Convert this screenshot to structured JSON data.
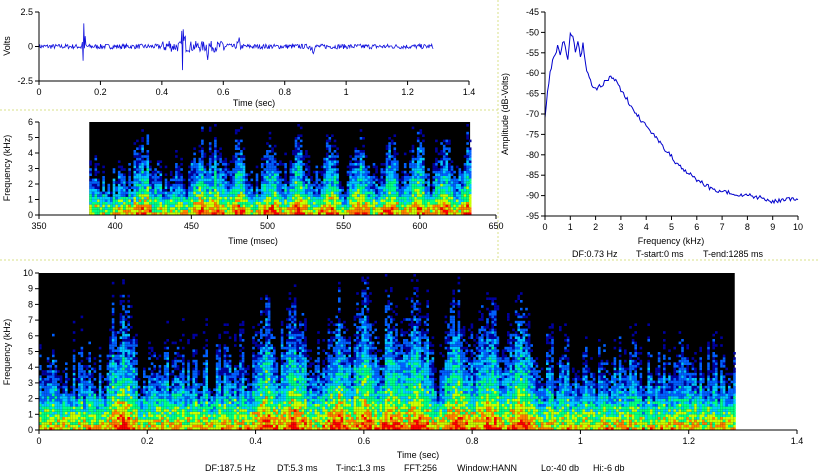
{
  "chart_data": [
    {
      "id": "waveform",
      "type": "line",
      "xlabel": "Time (sec)",
      "ylabel": "Volts",
      "xlim": [
        0,
        1.4
      ],
      "ylim": [
        -2.5,
        2.5
      ],
      "xticks": [
        "0",
        "0.2",
        "0.4",
        "0.6",
        "0.8",
        "1",
        "1.2",
        "1.4"
      ],
      "yticks": [
        "2.5",
        "0",
        "-2.5"
      ],
      "color": "#1010dd"
    },
    {
      "id": "spectrogram-detail",
      "type": "heatmap",
      "xlabel": "Time (msec)",
      "ylabel": "Frequency (kHz)",
      "xlim": [
        350,
        650
      ],
      "ylim": [
        0,
        6
      ],
      "data_x_range": [
        383,
        633
      ],
      "xticks": [
        "350",
        "400",
        "450",
        "500",
        "550",
        "600",
        "650"
      ],
      "yticks": [
        "0",
        "1",
        "2",
        "3",
        "4",
        "5",
        "6"
      ],
      "colormap": [
        "#000000",
        "#0000a0",
        "#0060ff",
        "#00c8ff",
        "#00ff80",
        "#c8ff00",
        "#ff8000",
        "#ff0000"
      ],
      "energy_peaks_ms": [
        418,
        455,
        465,
        480,
        502,
        520,
        540,
        560,
        580,
        598,
        615,
        632
      ]
    },
    {
      "id": "power-spectrum",
      "type": "line",
      "xlabel": "Frequency (kHz)",
      "ylabel": "Amplitude (dB-Volts)",
      "xlim": [
        0,
        10
      ],
      "ylim": [
        -95,
        -45
      ],
      "xticks": [
        "0",
        "1",
        "2",
        "3",
        "4",
        "5",
        "6",
        "7",
        "8",
        "9",
        "10"
      ],
      "yticks": [
        "-45",
        "-50",
        "-55",
        "-60",
        "-65",
        "-70",
        "-75",
        "-80",
        "-85",
        "-90",
        "-95"
      ],
      "series": [
        {
          "x": [
            0,
            0.1,
            0.2,
            0.3,
            0.4,
            0.5,
            0.6,
            0.7,
            0.8,
            0.9,
            1.0,
            1.1,
            1.2,
            1.3,
            1.4,
            1.5,
            1.6,
            1.8,
            2.0,
            2.2,
            2.4,
            2.6,
            2.8,
            3.0,
            3.3,
            3.6,
            4.0,
            4.4,
            4.8,
            5.2,
            5.6,
            6.0,
            6.5,
            7.0,
            7.5,
            8.0,
            8.5,
            9.0,
            9.5,
            10.0
          ],
          "y": [
            -71,
            -65,
            -60,
            -57,
            -56,
            -53,
            -56,
            -52,
            -53,
            -57,
            -50,
            -51,
            -55,
            -52,
            -56,
            -53,
            -58,
            -62,
            -64,
            -63,
            -62,
            -61,
            -62,
            -64,
            -67,
            -70,
            -73,
            -76,
            -79,
            -82,
            -84,
            -86,
            -88,
            -89,
            -89.5,
            -90,
            -90.5,
            -91.5,
            -91,
            -91
          ]
        }
      ],
      "color": "#0000cc"
    },
    {
      "id": "spectrogram-full",
      "type": "heatmap",
      "xlabel": "Time (sec)",
      "ylabel": "Frequency (kHz)",
      "xlim": [
        0,
        1.4
      ],
      "ylim": [
        0,
        10
      ],
      "data_x_range": [
        0,
        1.285
      ],
      "xticks": [
        "0",
        "0.2",
        "0.4",
        "0.6",
        "0.8",
        "1",
        "1.2",
        "1.4"
      ],
      "yticks": [
        "0",
        "1",
        "2",
        "3",
        "4",
        "5",
        "6",
        "7",
        "8",
        "9",
        "10"
      ],
      "colormap": [
        "#000000",
        "#0000a0",
        "#0060ff",
        "#00c8ff",
        "#00ff80",
        "#c8ff00",
        "#ff8000",
        "#ff0000"
      ],
      "energy_peaks_sec": [
        0.15,
        0.42,
        0.47,
        0.55,
        0.6,
        0.65,
        0.7,
        0.77,
        0.83,
        0.89
      ]
    }
  ],
  "spectrum_info": {
    "df": "DF:0.73 Hz",
    "tstart": "T-start:0 ms",
    "tend": "T-end:1285 ms"
  },
  "full_info": {
    "df": "DF:187.5 Hz",
    "dt": "DT:5.3 ms",
    "tinc": "T-inc:1.3 ms",
    "fft": "FFT:256",
    "window": "Window:HANN",
    "lo": "Lo:-40 db",
    "hi": "Hi:-6 db"
  }
}
